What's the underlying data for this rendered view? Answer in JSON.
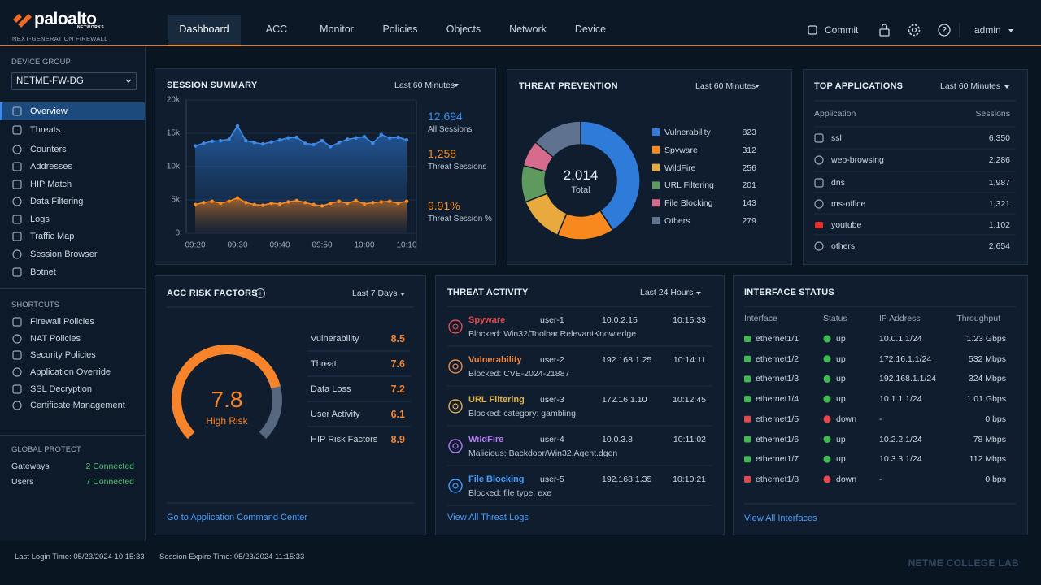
{
  "header": {
    "brand": "paloalto",
    "brand_sub": "NETWORKS",
    "product": "NEXT-GENERATION FIREWALL",
    "tabs": [
      "Dashboard",
      "ACC",
      "Monitor",
      "Policies",
      "Objects",
      "Network",
      "Device"
    ],
    "active_tab": 0,
    "commit": "Commit",
    "user": "admin"
  },
  "sidebar": {
    "device_group_label": "DEVICE GROUP",
    "device_group": "NETME-FW-DG",
    "nav": [
      "Overview",
      "Threats",
      "Counters",
      "Addresses",
      "HIP Match",
      "Data Filtering",
      "Logs",
      "Traffic Map",
      "Session Browser",
      "Botnet"
    ],
    "active_nav": 0,
    "shortcuts_title": "SHORTCUTS",
    "shortcuts": [
      "Firewall Policies",
      "NAT Policies",
      "Security Policies",
      "Application Override",
      "SSL Decryption",
      "Certificate Management"
    ],
    "global_protect": {
      "title": "GLOBAL PROTECT",
      "items": [
        {
          "label": "Gateways",
          "value": "2 Connected"
        },
        {
          "label": "Users",
          "value": "7 Connected"
        }
      ]
    }
  },
  "chart_data": [
    {
      "type": "line",
      "title": "SESSION SUMMARY",
      "range": "Last 60 Minutes",
      "categories": [
        "09:20",
        null,
        null,
        null,
        null,
        "09:30",
        null,
        null,
        null,
        null,
        "09:40",
        null,
        null,
        null,
        null,
        "09:50",
        null,
        null,
        null,
        null,
        "10:00",
        null,
        null,
        null,
        null,
        "10:10"
      ],
      "series": [
        {
          "name": "All Sessions",
          "color": "#3d8ae8",
          "values": [
            13100,
            13500,
            13800,
            13900,
            14100,
            16100,
            13900,
            13600,
            13400,
            13700,
            14000,
            14300,
            14400,
            13500,
            13300,
            13900,
            13000,
            13600,
            14100,
            14300,
            14500,
            13500,
            14800,
            14300,
            14400,
            14000
          ]
        },
        {
          "name": "Threat Sessions",
          "color": "#f7891f",
          "values": [
            4300,
            4600,
            4800,
            4500,
            4800,
            5300,
            4600,
            4300,
            4200,
            4500,
            4400,
            4700,
            4900,
            4600,
            4300,
            4100,
            4500,
            4800,
            4500,
            4900,
            4400,
            4600,
            4700,
            4800,
            4500,
            4800
          ]
        }
      ],
      "ylim": [
        0,
        20000
      ],
      "yticks": [
        0,
        {
          "value": 5000,
          "label": "5k"
        },
        {
          "value": 10000,
          "label": "10k"
        },
        {
          "value": 15000,
          "label": "15k"
        },
        {
          "value": 20000,
          "label": "20k"
        }
      ],
      "grid": true,
      "stats": [
        {
          "value": "12,694",
          "label": "All Sessions",
          "color": "#3d8ae8"
        },
        {
          "value": "1,258",
          "label": "Threat Sessions",
          "color": "#f7891f"
        },
        {
          "value": "9.91%",
          "label": "Threat Session %",
          "color": "#f7891f"
        }
      ]
    },
    {
      "type": "pie",
      "title": "THREAT PREVENTION",
      "range": "Last 60 Minutes",
      "categories": [
        "Vulnerability",
        "Spyware",
        "WildFire",
        "URL Filtering",
        "File Blocking",
        "Others"
      ],
      "values": [
        823,
        312,
        256,
        201,
        143,
        279
      ],
      "colors": [
        "#2f7bd9",
        "#f7891f",
        "#e8a93e",
        "#5e9a5e",
        "#d66b8c",
        "#5f7290"
      ],
      "total": {
        "value": 2014,
        "label": "2,014"
      },
      "total_caption": "Total"
    },
    {
      "type": "gauge",
      "title": "ACC RISK FACTORS",
      "range": "Last 7 Days",
      "value": 7.8,
      "caption": "High Risk",
      "ylim": [
        0,
        10
      ],
      "color": "#f7832a",
      "factors": {
        "categories": [
          "Vulnerability",
          "Threat",
          "Data Loss",
          "User Activity",
          "HIP Risk Factors"
        ],
        "values": [
          8.5,
          7.6,
          7.2,
          6.1,
          8.9
        ]
      },
      "link": "Go to Application Command Center"
    }
  ],
  "top_applications": {
    "title": "TOP APPLICATIONS",
    "range": "Last 60 Minutes",
    "columns": [
      "Application",
      "Sessions"
    ],
    "rows": [
      [
        "ssl",
        "6,350"
      ],
      [
        "web-browsing",
        "2,286"
      ],
      [
        "dns",
        "1,987"
      ],
      [
        "ms-office",
        "1,321"
      ],
      [
        "youtube",
        "1,102"
      ],
      [
        "others",
        "2,654"
      ]
    ]
  },
  "threat_activity": {
    "title": "THREAT ACTIVITY",
    "range": "Last 24 Hours",
    "events": [
      {
        "type": "Spyware",
        "user": "user-1",
        "ip": "10.0.2.15",
        "time": "10:15:33",
        "detail": "Blocked: Win32/Toolbar.RelevantKnowledge",
        "color": "#e5484d"
      },
      {
        "type": "Vulnerability",
        "user": "user-2",
        "ip": "192.168.1.25",
        "time": "10:14:11",
        "detail": "Blocked: CVE-2024-21887",
        "color": "#f0883e"
      },
      {
        "type": "URL Filtering",
        "user": "user-3",
        "ip": "172.16.1.10",
        "time": "10:12:45",
        "detail": "Blocked: category: gambling",
        "color": "#e3b341"
      },
      {
        "type": "WildFire",
        "user": "user-4",
        "ip": "10.0.3.8",
        "time": "10:11:02",
        "detail": "Malicious: Backdoor/Win32.Agent.dgen",
        "color": "#b07cf0"
      },
      {
        "type": "File Blocking",
        "user": "user-5",
        "ip": "192.168.1.35",
        "time": "10:10:21",
        "detail": "Blocked: file type: exe",
        "color": "#4a9eff"
      }
    ],
    "link": "View All Threat Logs"
  },
  "interface_status": {
    "title": "INTERFACE STATUS",
    "columns": [
      "Interface",
      "Status",
      "IP Address",
      "Throughput"
    ],
    "rows": [
      {
        "interface": "ethernet1/1",
        "status": "up",
        "ip": "10.0.1.1/24",
        "throughput": "1.23 Gbps",
        "ok": true
      },
      {
        "interface": "ethernet1/2",
        "status": "up",
        "ip": "172.16.1.1/24",
        "throughput": "532 Mbps",
        "ok": true
      },
      {
        "interface": "ethernet1/3",
        "status": "up",
        "ip": "192.168.1.1/24",
        "throughput": "324 Mbps",
        "ok": true
      },
      {
        "interface": "ethernet1/4",
        "status": "up",
        "ip": "10.1.1.1/24",
        "throughput": "1.01 Gbps",
        "ok": true
      },
      {
        "interface": "ethernet1/5",
        "status": "down",
        "ip": "-",
        "throughput": "0 bps",
        "ok": false
      },
      {
        "interface": "ethernet1/6",
        "status": "up",
        "ip": "10.2.2.1/24",
        "throughput": "78 Mbps",
        "ok": true
      },
      {
        "interface": "ethernet1/7",
        "status": "up",
        "ip": "10.3.3.1/24",
        "throughput": "112 Mbps",
        "ok": true
      },
      {
        "interface": "ethernet1/8",
        "status": "down",
        "ip": "-",
        "throughput": "0 bps",
        "ok": false
      }
    ],
    "link": "View All Interfaces"
  },
  "footer": {
    "last_login": "Last Login Time: 05/23/2024 10:15:33",
    "session_expire": "Session Expire Time: 05/23/2024 11:15:33",
    "watermark": "NETME COLLEGE LAB"
  }
}
